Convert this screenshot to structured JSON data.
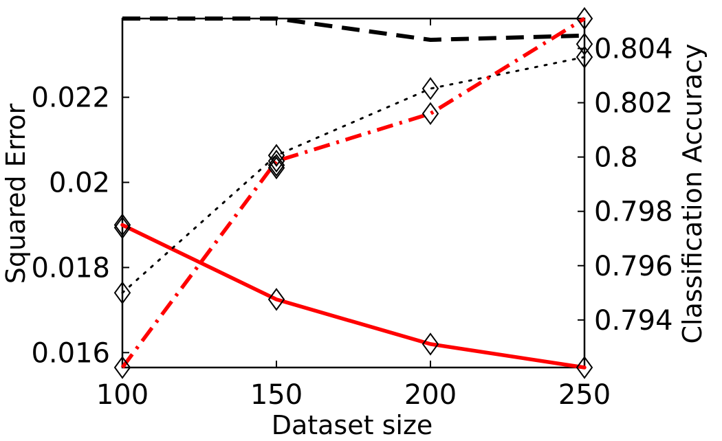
{
  "chart_data": {
    "type": "line",
    "xlabel": "Dataset size",
    "ylabel_left": "Squared Error",
    "ylabel_right": "Classification Accuracy",
    "x": [
      100,
      150,
      200,
      250
    ],
    "x_ticks": [
      "100",
      "150",
      "200",
      "250"
    ],
    "xlim": [
      100,
      250
    ],
    "left_axis": {
      "ylim": [
        0.01565,
        0.02385
      ],
      "ticks": [
        0.016,
        0.018,
        0.02,
        0.022
      ],
      "tick_labels": [
        "0.016",
        "0.018",
        "0.02",
        "0.022"
      ]
    },
    "right_axis": {
      "ylim": [
        0.79225,
        0.8051
      ],
      "ticks": [
        0.794,
        0.796,
        0.798,
        0.8,
        0.802,
        0.804
      ],
      "tick_labels": [
        "0.794",
        "0.796",
        "0.798",
        "0.8",
        "0.802",
        "0.804"
      ]
    },
    "grid": false,
    "series": [
      {
        "axis": "left",
        "style": "solid",
        "color": "#ff0000",
        "marker": "diamond",
        "values": [
          0.019,
          0.01725,
          0.0162,
          0.01565
        ]
      },
      {
        "axis": "left",
        "style": "dashed",
        "color": "#000000",
        "marker": "none",
        "values": [
          0.02385,
          0.02385,
          0.02335,
          0.02345
        ]
      },
      {
        "axis": "right",
        "style": "dotted",
        "color": "#000000",
        "marker": "diamond",
        "values": [
          0.795,
          0.80006,
          0.80252,
          0.80368
        ]
      },
      {
        "axis": "right",
        "style": "dashdot",
        "color": "#ff0000",
        "marker": "diamond",
        "values": [
          0.79225,
          0.79985,
          0.8016,
          0.8051
        ]
      }
    ],
    "extra_markers": [
      {
        "axis": "right",
        "x": 100,
        "value": 0.7974
      },
      {
        "axis": "right",
        "x": 150,
        "value": 0.7997
      },
      {
        "axis": "right",
        "x": 150,
        "value": 0.7996
      },
      {
        "axis": "right",
        "x": 250,
        "value": 0.80416
      }
    ]
  }
}
